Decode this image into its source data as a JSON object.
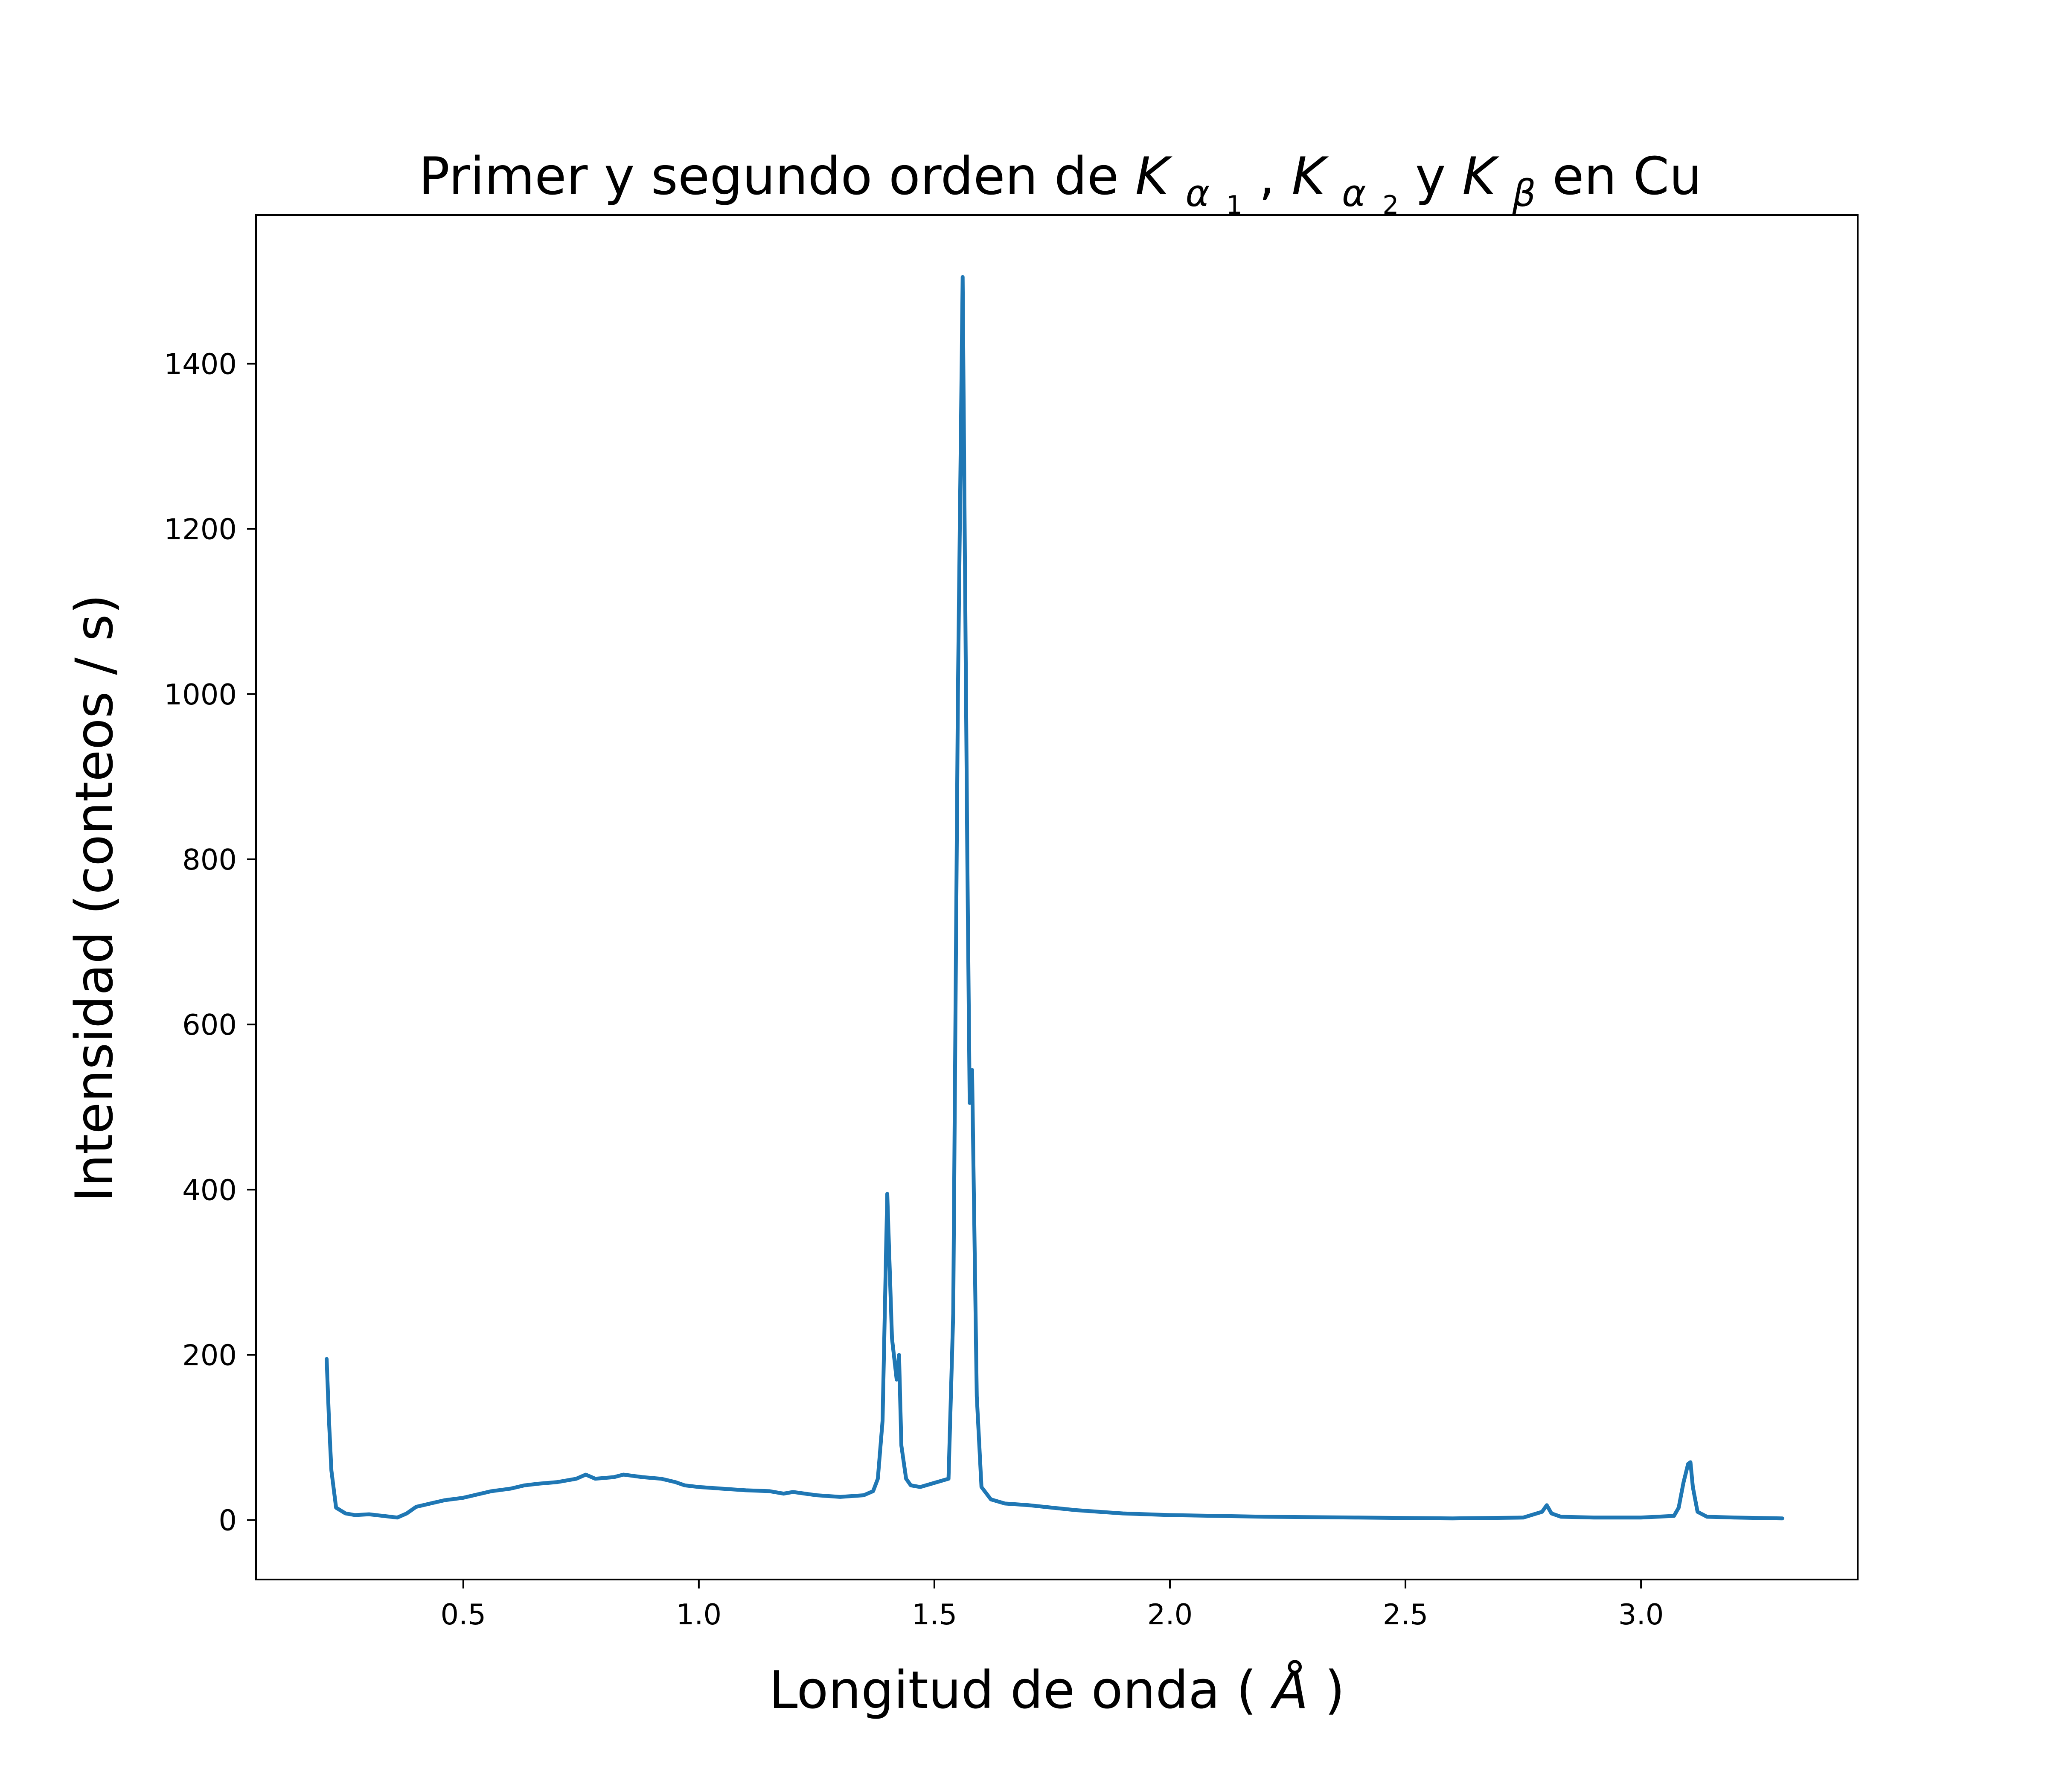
{
  "chart_data": {
    "type": "line",
    "title": {
      "prefix": "Primer y segundo orden de ",
      "k": "K",
      "alpha": "α",
      "beta": "β",
      "sub1": "1",
      "sub2": "2",
      "comma": ", ",
      "y_connector": " y ",
      "suffix": " en Cu"
    },
    "xlabel": {
      "text": "Longitud de onda (",
      "unit": "Å",
      "close": ")"
    },
    "ylabel": "Intensidad (conteos / s)",
    "xlim": [
      0.06,
      3.46
    ],
    "ylim": [
      -72,
      1580
    ],
    "x_ticks": [
      0.5,
      1.0,
      1.5,
      2.0,
      2.5,
      3.0
    ],
    "x_tick_labels": [
      "0.5",
      "1.0",
      "1.5",
      "2.0",
      "2.5",
      "3.0"
    ],
    "y_ticks": [
      0,
      200,
      400,
      600,
      800,
      1000,
      1200,
      1400
    ],
    "y_tick_labels": [
      "0",
      "200",
      "400",
      "600",
      "800",
      "1000",
      "1200",
      "1400"
    ],
    "grid": false,
    "colors": {
      "series": "#1f77b4",
      "axes": "#000000"
    },
    "series": [
      {
        "x": [
          0.21,
          0.215,
          0.22,
          0.23,
          0.25,
          0.27,
          0.3,
          0.33,
          0.36,
          0.38,
          0.4,
          0.43,
          0.46,
          0.5,
          0.53,
          0.56,
          0.6,
          0.63,
          0.66,
          0.7,
          0.74,
          0.76,
          0.78,
          0.82,
          0.84,
          0.88,
          0.92,
          0.95,
          0.97,
          1.0,
          1.05,
          1.1,
          1.15,
          1.18,
          1.2,
          1.25,
          1.3,
          1.35,
          1.37,
          1.38,
          1.39,
          1.4,
          1.41,
          1.42,
          1.425,
          1.43,
          1.44,
          1.45,
          1.47,
          1.5,
          1.53,
          1.54,
          1.55,
          1.56,
          1.57,
          1.575,
          1.58,
          1.59,
          1.6,
          1.62,
          1.65,
          1.7,
          1.75,
          1.8,
          1.9,
          2.0,
          2.2,
          2.4,
          2.6,
          2.75,
          2.79,
          2.8,
          2.81,
          2.83,
          2.9,
          3.0,
          3.07,
          3.08,
          3.09,
          3.1,
          3.105,
          3.11,
          3.12,
          3.14,
          3.2,
          3.3
        ],
        "y": [
          195,
          120,
          60,
          15,
          8,
          6,
          7,
          5,
          3,
          8,
          16,
          20,
          24,
          27,
          31,
          35,
          38,
          42,
          44,
          46,
          50,
          55,
          50,
          52,
          55,
          52,
          50,
          46,
          42,
          40,
          38,
          36,
          35,
          32,
          34,
          30,
          28,
          30,
          35,
          50,
          120,
          395,
          220,
          170,
          200,
          90,
          50,
          42,
          40,
          45,
          50,
          250,
          1000,
          1505,
          800,
          505,
          545,
          150,
          40,
          25,
          20,
          18,
          15,
          12,
          8,
          6,
          4,
          3,
          2,
          3,
          10,
          18,
          8,
          4,
          3,
          3,
          5,
          15,
          45,
          68,
          70,
          40,
          10,
          4,
          3,
          2
        ]
      }
    ]
  }
}
